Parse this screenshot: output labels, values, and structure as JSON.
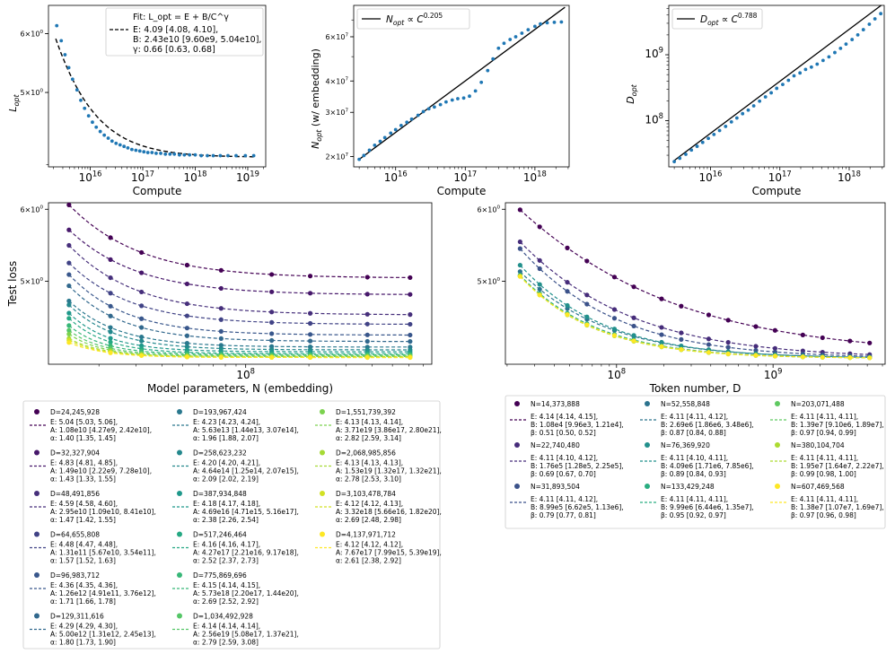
{
  "colors": {
    "point": "#1f77b4",
    "fit_line": "#000000",
    "viridis": [
      "#440154",
      "#482173",
      "#433e85",
      "#38598c",
      "#2d708e",
      "#25858e",
      "#1e9b8a",
      "#2ab07f",
      "#52c569",
      "#86d549",
      "#c2df23",
      "#fde725"
    ]
  },
  "chart_data": [
    {
      "id": "p1",
      "type": "scatter",
      "xlabel": "Compute",
      "ylabel": "L_opt",
      "ylabel_main": "L",
      "ylabel_sub": "opt",
      "xscale": "log",
      "yscale": "log",
      "xticks": [
        {
          "v": 1e+16,
          "label": "10^16"
        },
        {
          "v": 1e+17,
          "label": "10^17"
        },
        {
          "v": 1e+18,
          "label": "10^18"
        },
        {
          "v": 1e+19,
          "label": "10^19"
        }
      ],
      "yticks": [
        {
          "v": 5.0,
          "label": "5×10^0"
        },
        {
          "v": 6.0,
          "label": "6×10^0"
        }
      ],
      "legend": {
        "title": "Fit: L_opt = E + B/C^γ",
        "lines": [
          "E: 4.09 [4.08, 4.10],",
          "B:  2.43e10 [9.60e9, 5.04e10],",
          "γ: 0.66 [0.63, 0.68]"
        ]
      },
      "fit": {
        "E": 4.09,
        "B": 24300000000.0,
        "gamma": 0.66
      },
      "points": [
        [
          2300000000000000.0,
          6.15
        ],
        [
          2800000000000000.0,
          5.87
        ],
        [
          3300000000000000.0,
          5.62
        ],
        [
          3900000000000000.0,
          5.4
        ],
        [
          4600000000000000.0,
          5.21
        ],
        [
          5600000000000000.0,
          5.04
        ],
        [
          6600000000000000.0,
          4.88
        ],
        [
          7800000000000000.0,
          4.76
        ],
        [
          9300000000000000.0,
          4.65
        ],
        [
          1.1e+16,
          4.56
        ],
        [
          1.3e+16,
          4.49
        ],
        [
          1.55e+16,
          4.43
        ],
        [
          1.85e+16,
          4.38
        ],
        [
          2.2e+16,
          4.34
        ],
        [
          2.6e+16,
          4.3
        ],
        [
          3.1e+16,
          4.27
        ],
        [
          3.7e+16,
          4.25
        ],
        [
          4.4e+16,
          4.23
        ],
        [
          5.2e+16,
          4.21
        ],
        [
          6.2e+16,
          4.19
        ],
        [
          7.4e+16,
          4.18
        ],
        [
          8.8e+16,
          4.17
        ],
        [
          1.05e+17,
          4.16
        ],
        [
          1.25e+17,
          4.15
        ],
        [
          1.5e+17,
          4.15
        ],
        [
          1.8e+17,
          4.14
        ],
        [
          2.2e+17,
          4.14
        ],
        [
          2.7e+17,
          4.13
        ],
        [
          3.3e+17,
          4.13
        ],
        [
          4e+17,
          4.13
        ],
        [
          5e+17,
          4.12
        ],
        [
          6.2e+17,
          4.12
        ],
        [
          7.8e+17,
          4.12
        ],
        [
          1e+18,
          4.12
        ],
        [
          1.3e+18,
          4.11
        ],
        [
          1.7e+18,
          4.11
        ],
        [
          2.2e+18,
          4.11
        ],
        [
          3e+18,
          4.11
        ],
        [
          4.2e+18,
          4.11
        ],
        [
          6e+18,
          4.11
        ],
        [
          9e+18,
          4.11
        ],
        [
          1.3e+19,
          4.11
        ]
      ]
    },
    {
      "id": "p2",
      "type": "scatter",
      "xlabel": "Compute",
      "ylabel": "N_opt (w/ embedding)",
      "ylabel_main": "N",
      "ylabel_sub": "opt",
      "ylabel_rest": "(w/ embedding)",
      "xscale": "log",
      "yscale": "log",
      "xticks": [
        {
          "v": 1e+16,
          "label": "10^16"
        },
        {
          "v": 1e+17,
          "label": "10^17"
        },
        {
          "v": 1e+18,
          "label": "10^18"
        }
      ],
      "yticks": [
        {
          "v": 20000000.0,
          "label": "2×10^7"
        },
        {
          "v": 30000000.0,
          "label": "3×10^7"
        },
        {
          "v": 40000000.0,
          "label": "4×10^7"
        },
        {
          "v": 60000000.0,
          "label": "6×10^7"
        }
      ],
      "legend": {
        "label": "N_opt ∝ C^0.205",
        "exponent": "0.205"
      },
      "fit": {
        "ref_x": 3000000000000000.0,
        "ref_y": 19500000.0,
        "exp": 0.205
      },
      "points": [
        [
          3000000000000000.0,
          19500000.0
        ],
        [
          3500000000000000.0,
          20200000.0
        ],
        [
          4200000000000000.0,
          21200000.0
        ],
        [
          5000000000000000.0,
          22200000.0
        ],
        [
          6000000000000000.0,
          23000000.0
        ],
        [
          7000000000000000.0,
          23800000.0
        ],
        [
          8500000000000000.0,
          24800000.0
        ],
        [
          1e+16,
          25600000.0
        ],
        [
          1.2e+16,
          26600000.0
        ],
        [
          1.45e+16,
          27400000.0
        ],
        [
          1.7e+16,
          28200000.0
        ],
        [
          2.1e+16,
          29200000.0
        ],
        [
          2.5e+16,
          30200000.0
        ],
        [
          3e+16,
          31000000.0
        ],
        [
          3.6e+16,
          31500000.0
        ],
        [
          4.4e+16,
          32200000.0
        ],
        [
          5.3e+16,
          33000000.0
        ],
        [
          6.5e+16,
          33600000.0
        ],
        [
          7.8e+16,
          34000000.0
        ],
        [
          9.5e+16,
          34200000.0
        ],
        [
          1.15e+17,
          34800000.0
        ],
        [
          1.4e+17,
          36500000.0
        ],
        [
          1.7e+17,
          39500000.0
        ],
        [
          2.1e+17,
          44000000.0
        ],
        [
          2.5e+17,
          49000000.0
        ],
        [
          3e+17,
          54000000.0
        ],
        [
          3.6e+17,
          56500000.0
        ],
        [
          4.4e+17,
          58500000.0
        ],
        [
          5.3e+17,
          60000000.0
        ],
        [
          6.5e+17,
          62000000.0
        ],
        [
          8e+17,
          64000000.0
        ],
        [
          1e+18,
          66000000.0
        ],
        [
          1.2e+18,
          67500000.0
        ],
        [
          1.5e+18,
          68200000.0
        ],
        [
          1.9e+18,
          68500000.0
        ],
        [
          2.4e+18,
          68700000.0
        ]
      ]
    },
    {
      "id": "p3",
      "type": "scatter",
      "xlabel": "Compute",
      "ylabel": "D_opt",
      "ylabel_main": "D",
      "ylabel_sub": "opt",
      "xscale": "log",
      "yscale": "log",
      "xticks": [
        {
          "v": 1e+16,
          "label": "10^16"
        },
        {
          "v": 1e+17,
          "label": "10^17"
        },
        {
          "v": 1e+18,
          "label": "10^18"
        }
      ],
      "yticks": [
        {
          "v": 100000000.0,
          "label": "10^8"
        },
        {
          "v": 1000000000.0,
          "label": "10^9"
        }
      ],
      "legend": {
        "label": "D_opt ∝ C^0.788",
        "exponent": "0.788"
      },
      "fit": {
        "ref_x": 3000000000000000.0,
        "ref_y": 25000000.0,
        "exp": 0.788
      },
      "points": [
        [
          3000000000000000.0,
          24000000.0
        ],
        [
          3600000000000000.0,
          27000000.0
        ],
        [
          4400000000000000.0,
          31000000.0
        ],
        [
          5300000000000000.0,
          36000000.0
        ],
        [
          6400000000000000.0,
          41000000.0
        ],
        [
          7700000000000000.0,
          47000000.0
        ],
        [
          9300000000000000.0,
          54000000.0
        ],
        [
          1.12e+16,
          62000000.0
        ],
        [
          1.35e+16,
          71000000.0
        ],
        [
          1.65e+16,
          82000000.0
        ],
        [
          2e+16,
          96000000.0
        ],
        [
          2.4e+16,
          110000000.0
        ],
        [
          2.9e+16,
          128000000.0
        ],
        [
          3.5e+16,
          145000000.0
        ],
        [
          4.2e+16,
          168000000.0
        ],
        [
          5.1e+16,
          198000000.0
        ],
        [
          6.2e+16,
          230000000.0
        ],
        [
          7.5e+16,
          265000000.0
        ],
        [
          9e+16,
          310000000.0
        ],
        [
          1.1e+17,
          355000000.0
        ],
        [
          1.33e+17,
          410000000.0
        ],
        [
          1.6e+17,
          480000000.0
        ],
        [
          1.95e+17,
          530000000.0
        ],
        [
          2.35e+17,
          600000000.0
        ],
        [
          2.85e+17,
          650000000.0
        ],
        [
          3.45e+17,
          720000000.0
        ],
        [
          4.2e+17,
          820000000.0
        ],
        [
          5.1e+17,
          930000000.0
        ],
        [
          6.2e+17,
          1080000000.0
        ],
        [
          7.5e+17,
          1250000000.0
        ],
        [
          9e+17,
          1450000000.0
        ],
        [
          1.1e+18,
          1700000000.0
        ],
        [
          1.33e+18,
          2000000000.0
        ],
        [
          1.6e+18,
          2400000000.0
        ],
        [
          1.95e+18,
          2900000000.0
        ],
        [
          2.35e+18,
          3500000000.0
        ],
        [
          2.85e+18,
          4200000000.0
        ]
      ]
    },
    {
      "id": "p4",
      "type": "line",
      "xlabel": "Model parameters, N (embedding)",
      "ylabel": "Test loss",
      "xscale": "log",
      "yscale": "log",
      "xticks": [
        {
          "v": 100000000.0,
          "label": "10^8"
        }
      ],
      "yticks": [
        {
          "v": 5.0,
          "label": "5×10^0"
        },
        {
          "v": 6.0,
          "label": "6×10^0"
        }
      ],
      "x": [
        14400000.0,
        22700000.0,
        31900000.0,
        52600000.0,
        76400000.0,
        133000000.0,
        203000000.0,
        380000000.0,
        607000000.0
      ],
      "series": [
        {
          "label": "D=24,245,928",
          "E": 5.04,
          "A": 10800000000.0,
          "alpha": 1.4,
          "fit_lines": [
            "E: 5.04 [5.03, 5.06],",
            "A:  1.08e10 [4.27e9, 2.42e10],",
            "α: 1.40 [1.35, 1.45]"
          ]
        },
        {
          "label": "D=32,327,904",
          "E": 4.83,
          "A": 14900000000.0,
          "alpha": 1.43,
          "fit_lines": [
            "E: 4.83 [4.81, 4.85],",
            "A:  1.49e10 [2.22e9, 7.28e10],",
            "α: 1.43 [1.33, 1.55]"
          ]
        },
        {
          "label": "D=48,491,856",
          "E": 4.59,
          "A": 29500000000.0,
          "alpha": 1.47,
          "fit_lines": [
            "E: 4.59 [4.58, 4.60],",
            "A:  2.95e10 [1.09e10, 8.41e10],",
            "α: 1.47 [1.42, 1.55]"
          ]
        },
        {
          "label": "D=64,655,808",
          "E": 4.48,
          "A": 131000000000.0,
          "alpha": 1.57,
          "fit_lines": [
            "E: 4.48 [4.47, 4.48],",
            "A:  1.31e11 [5.67e10, 3.54e11],",
            "α: 1.57 [1.52, 1.63]"
          ]
        },
        {
          "label": "D=96,983,712",
          "E": 4.36,
          "A": 1260000000000.0,
          "alpha": 1.71,
          "fit_lines": [
            "E: 4.36 [4.35, 4.36],",
            "A:  1.26e12 [4.91e11, 3.76e12],",
            "α: 1.71 [1.66, 1.78]"
          ]
        },
        {
          "label": "D=129,311,616",
          "E": 4.29,
          "A": 5000000000000.0,
          "alpha": 1.8,
          "fit_lines": [
            "E: 4.29 [4.29, 4.30],",
            "A:  5.00e12 [1.31e12, 2.45e13],",
            "α: 1.80 [1.73, 1.90]"
          ]
        },
        {
          "label": "D=193,967,424",
          "E": 4.23,
          "A": 56300000000000.0,
          "alpha": 1.96,
          "fit_lines": [
            "E: 4.23 [4.23, 4.24],",
            "A:  5.63e13 [1.44e13, 3.07e14],",
            "α: 1.96 [1.88, 2.07]"
          ]
        },
        {
          "label": "D=258,623,232",
          "E": 4.2,
          "A": 464000000000000.0,
          "alpha": 2.09,
          "fit_lines": [
            "E: 4.20 [4.20, 4.21],",
            "A:  4.64e14 [1.25e14, 2.07e15],",
            "α: 2.09 [2.02, 2.19]"
          ]
        },
        {
          "label": "D=387,934,848",
          "E": 4.18,
          "A": 4.69e+16,
          "alpha": 2.38,
          "fit_lines": [
            "E: 4.18 [4.17, 4.18],",
            "A:  4.69e16 [4.71e15, 5.16e17],",
            "α: 2.38 [2.26, 2.54]"
          ]
        },
        {
          "label": "D=517,246,464",
          "E": 4.16,
          "A": 4.27e+17,
          "alpha": 2.52,
          "fit_lines": [
            "E: 4.16 [4.16, 4.17],",
            "A:  4.27e17 [2.21e16, 9.17e18],",
            "α: 2.52 [2.37, 2.73]"
          ]
        },
        {
          "label": "D=775,869,696",
          "E": 4.15,
          "A": 5.73e+18,
          "alpha": 2.69,
          "fit_lines": [
            "E: 4.15 [4.14, 4.15],",
            "A:  5.73e18 [2.20e17, 1.44e20],",
            "α: 2.69 [2.52, 2.92]"
          ]
        },
        {
          "label": "D=1,034,492,928",
          "E": 4.14,
          "A": 2.56e+19,
          "alpha": 2.79,
          "fit_lines": [
            "E: 4.14 [4.14, 4.14],",
            "A:  2.56e19 [5.08e17, 1.37e21],",
            "α: 2.79 [2.59, 3.08]"
          ]
        },
        {
          "label": "D=1,551,739,392",
          "E": 4.13,
          "A": 3.71e+19,
          "alpha": 2.82,
          "fit_lines": [
            "E: 4.13 [4.13, 4.14],",
            "A:  3.71e19 [3.86e17, 2.80e21],",
            "α: 2.82 [2.59, 3.14]"
          ]
        },
        {
          "label": "D=2,068,985,856",
          "E": 4.13,
          "A": 1.53e+19,
          "alpha": 2.78,
          "fit_lines": [
            "E: 4.13 [4.13, 4.13],",
            "A:  1.53e19 [1.32e17, 1.32e21],",
            "α: 2.78 [2.53, 3.10]"
          ]
        },
        {
          "label": "D=3,103,478,784",
          "E": 4.12,
          "A": 3.32e+18,
          "alpha": 2.69,
          "fit_lines": [
            "E: 4.12 [4.12, 4.13],",
            "A:  3.32e18 [5.66e16, 1.82e20],",
            "α: 2.69 [2.48, 2.98]"
          ]
        },
        {
          "label": "D=4,137,971,712",
          "E": 4.12,
          "A": 7.67e+17,
          "alpha": 2.61,
          "fit_lines": [
            "E: 4.12 [4.12, 4.12],",
            "A:  7.67e17 [7.99e15, 5.39e19],",
            "α: 2.61 [2.38, 2.92]"
          ]
        }
      ]
    },
    {
      "id": "p5",
      "type": "line",
      "xlabel": "Token number, D",
      "ylabel": "",
      "xscale": "log",
      "yscale": "log",
      "xticks": [
        {
          "v": 100000000.0,
          "label": "10^8"
        },
        {
          "v": 1000000000.0,
          "label": "10^9"
        }
      ],
      "yticks": [
        {
          "v": 5.0,
          "label": "5×10^0"
        },
        {
          "v": 6.0,
          "label": "6×10^0"
        }
      ],
      "x": [
        24200000.0,
        32300000.0,
        48500000.0,
        64700000.0,
        97000000.0,
        129000000.0,
        194000000.0,
        259000000.0,
        388000000.0,
        517000000.0,
        776000000.0,
        1030000000.0,
        1550000000.0,
        2070000000.0,
        3100000000.0,
        4140000000.0
      ],
      "series": [
        {
          "label": "N=14,373,888",
          "E": 4.14,
          "B": 10800.0,
          "beta": 0.51,
          "fit_lines": [
            "E: 4.14 [4.14, 4.15],",
            "B:  1.08e4 [9.96e3, 1.21e4],",
            "β: 0.51 [0.50, 0.52]"
          ]
        },
        {
          "label": "N=22,740,480",
          "E": 4.11,
          "B": 176000.0,
          "beta": 0.69,
          "fit_lines": [
            "E: 4.11 [4.10, 4.12],",
            "B:  1.76e5 [1.28e5, 2.25e5],",
            "β: 0.69 [0.67, 0.70]"
          ]
        },
        {
          "label": "N=31,893,504",
          "E": 4.11,
          "B": 899000.0,
          "beta": 0.79,
          "fit_lines": [
            "E: 4.11 [4.11, 4.12],",
            "B:  8.99e5 [6.62e5, 1.13e6],",
            "β: 0.79 [0.77, 0.81]"
          ]
        },
        {
          "label": "N=52,558,848",
          "E": 4.11,
          "B": 2690000.0,
          "beta": 0.87,
          "fit_lines": [
            "E: 4.11 [4.11, 4.12],",
            "B:  2.69e6 [1.86e6, 3.48e6],",
            "β: 0.87 [0.84, 0.88]"
          ]
        },
        {
          "label": "N=76,369,920",
          "E": 4.11,
          "B": 4090000.0,
          "beta": 0.89,
          "fit_lines": [
            "E: 4.11 [4.10, 4.11],",
            "B:  4.09e6 [1.71e6, 7.85e6],",
            "β: 0.89 [0.84, 0.93]"
          ]
        },
        {
          "label": "N=133,429,248",
          "E": 4.11,
          "B": 9990000.0,
          "beta": 0.95,
          "fit_lines": [
            "E: 4.11 [4.11, 4.11],",
            "B:  9.99e6 [6.44e6, 1.35e7],",
            "β: 0.95 [0.92, 0.97]"
          ]
        },
        {
          "label": "N=203,071,488",
          "E": 4.11,
          "B": 13900000.0,
          "beta": 0.97,
          "fit_lines": [
            "E: 4.11 [4.11, 4.11],",
            "B:  1.39e7 [9.10e6, 1.89e7],",
            "β: 0.97 [0.94, 0.99]"
          ]
        },
        {
          "label": "N=380,104,704",
          "E": 4.11,
          "B": 19500000.0,
          "beta": 0.99,
          "fit_lines": [
            "E: 4.11 [4.11, 4.11],",
            "B:  1.95e7 [1.64e7, 2.22e7],",
            "β: 0.99 [0.98, 1.00]"
          ]
        },
        {
          "label": "N=607,469,568",
          "E": 4.11,
          "B": 13800000.0,
          "beta": 0.97,
          "fit_lines": [
            "E: 4.11 [4.11, 4.11],",
            "B:  1.38e7 [1.07e7, 1.69e7],",
            "β: 0.97 [0.96, 0.98]"
          ]
        }
      ]
    }
  ]
}
